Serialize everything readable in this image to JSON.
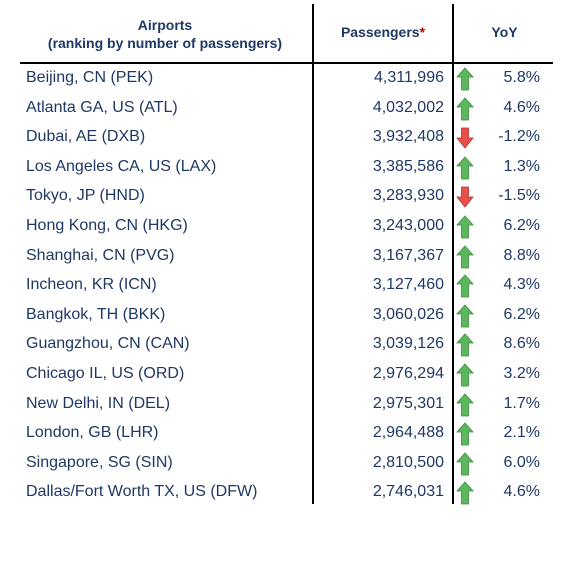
{
  "header": {
    "airports_title": "Airports",
    "airports_subtitle": "(ranking by number of passengers)",
    "passengers_label": "Passengers",
    "passengers_footnote_marker": "*",
    "yoy_label": "YoY"
  },
  "colors": {
    "text": "#1f3864",
    "up_arrow": "#5cb85c",
    "down_arrow": "#e8504a",
    "footnote": "#c00000"
  },
  "rows": [
    {
      "airport": "Beijing, CN (PEK)",
      "passengers": "4,311,996",
      "trend": "up-arrow-icon",
      "yoy": "5.8%"
    },
    {
      "airport": "Atlanta GA, US (ATL)",
      "passengers": "4,032,002",
      "trend": "up-arrow-icon",
      "yoy": "4.6%"
    },
    {
      "airport": "Dubai, AE (DXB)",
      "passengers": "3,932,408",
      "trend": "down-arrow-icon",
      "yoy": "-1.2%"
    },
    {
      "airport": "Los Angeles CA, US (LAX)",
      "passengers": "3,385,586",
      "trend": "up-arrow-icon",
      "yoy": "1.3%"
    },
    {
      "airport": "Tokyo, JP (HND)",
      "passengers": "3,283,930",
      "trend": "down-arrow-icon",
      "yoy": "-1.5%"
    },
    {
      "airport": "Hong Kong, CN (HKG)",
      "passengers": "3,243,000",
      "trend": "up-arrow-icon",
      "yoy": "6.2%"
    },
    {
      "airport": "Shanghai, CN (PVG)",
      "passengers": "3,167,367",
      "trend": "up-arrow-icon",
      "yoy": "8.8%"
    },
    {
      "airport": "Incheon, KR (ICN)",
      "passengers": "3,127,460",
      "trend": "up-arrow-icon",
      "yoy": "4.3%"
    },
    {
      "airport": "Bangkok, TH (BKK)",
      "passengers": "3,060,026",
      "trend": "up-arrow-icon",
      "yoy": "6.2%"
    },
    {
      "airport": "Guangzhou, CN (CAN)",
      "passengers": "3,039,126",
      "trend": "up-arrow-icon",
      "yoy": "8.6%"
    },
    {
      "airport": "Chicago IL, US (ORD)",
      "passengers": "2,976,294",
      "trend": "up-arrow-icon",
      "yoy": "3.2%"
    },
    {
      "airport": "New Delhi, IN (DEL)",
      "passengers": "2,975,301",
      "trend": "up-arrow-icon",
      "yoy": "1.7%"
    },
    {
      "airport": "London, GB (LHR)",
      "passengers": "2,964,488",
      "trend": "up-arrow-icon",
      "yoy": "2.1%"
    },
    {
      "airport": "Singapore, SG (SIN)",
      "passengers": "2,810,500",
      "trend": "up-arrow-icon",
      "yoy": "6.0%"
    },
    {
      "airport": "Dallas/Fort Worth TX, US (DFW)",
      "passengers": "2,746,031",
      "trend": "up-arrow-icon",
      "yoy": "4.6%"
    }
  ],
  "chart_data": {
    "type": "table",
    "columns": [
      "Airports (ranking by number of passengers)",
      "Passengers*",
      "YoY"
    ],
    "categories": [
      "Beijing, CN (PEK)",
      "Atlanta GA, US (ATL)",
      "Dubai, AE (DXB)",
      "Los Angeles CA, US (LAX)",
      "Tokyo, JP (HND)",
      "Hong Kong, CN (HKG)",
      "Shanghai, CN (PVG)",
      "Incheon, KR (ICN)",
      "Bangkok, TH (BKK)",
      "Guangzhou, CN (CAN)",
      "Chicago IL, US (ORD)",
      "New Delhi, IN (DEL)",
      "London, GB (LHR)",
      "Singapore, SG (SIN)",
      "Dallas/Fort Worth TX, US (DFW)"
    ],
    "series": [
      {
        "name": "Passengers*",
        "values": [
          4311996,
          4032002,
          3932408,
          3385586,
          3283930,
          3243000,
          3167367,
          3127460,
          3060026,
          3039126,
          2976294,
          2975301,
          2964488,
          2810500,
          2746031
        ]
      },
      {
        "name": "YoY",
        "values": [
          5.8,
          4.6,
          -1.2,
          1.3,
          -1.5,
          6.2,
          8.8,
          4.3,
          6.2,
          8.6,
          3.2,
          1.7,
          2.1,
          6.0,
          4.6
        ]
      }
    ]
  }
}
